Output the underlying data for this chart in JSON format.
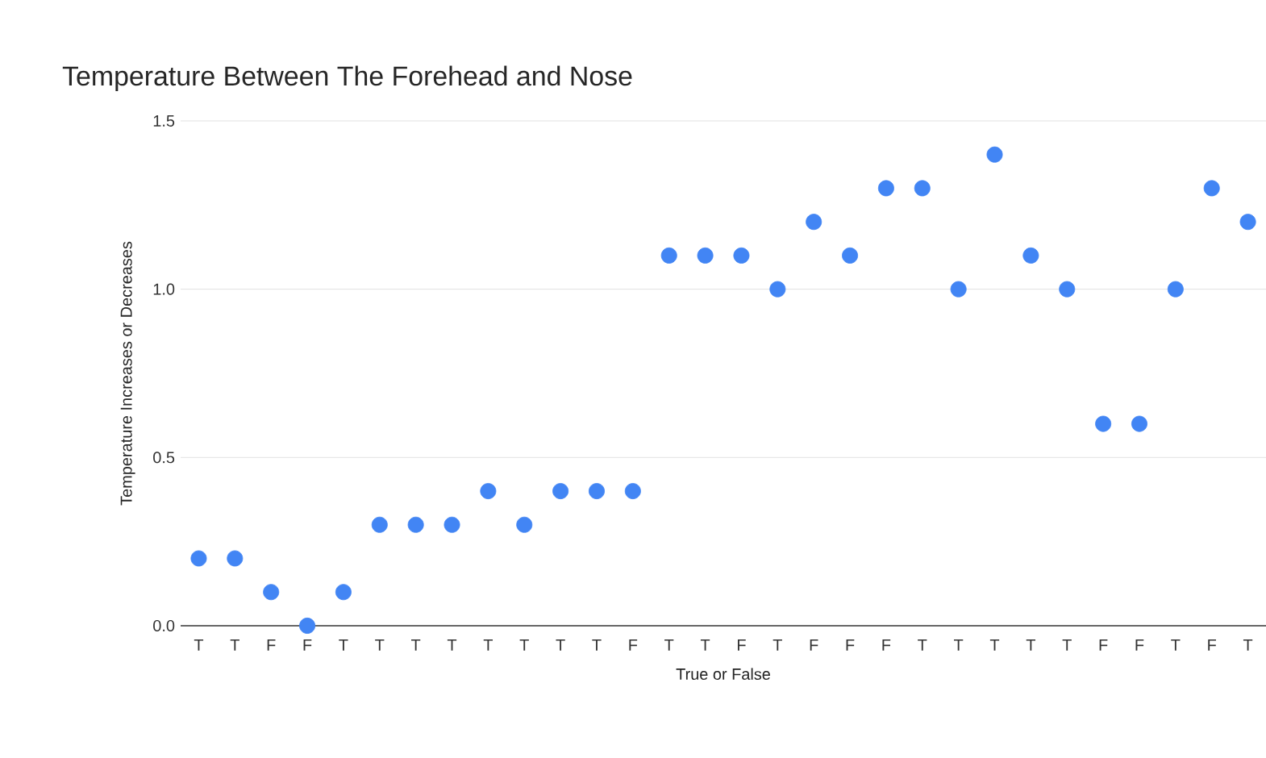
{
  "chart_data": {
    "type": "scatter",
    "title": "Temperature Between The Forehead and Nose",
    "xlabel": "True or False",
    "ylabel": "Temperature Increases or Decreases",
    "categories": [
      "T",
      "T",
      "F",
      "F",
      "T",
      "T",
      "T",
      "T",
      "T",
      "T",
      "T",
      "T",
      "F",
      "T",
      "T",
      "F",
      "T",
      "F",
      "F",
      "F",
      "T",
      "T",
      "T",
      "T",
      "T",
      "F",
      "F",
      "T",
      "F",
      "T"
    ],
    "values": [
      0.2,
      0.2,
      0.1,
      0,
      0.1,
      0.3,
      0.3,
      0.3,
      0.4,
      0.3,
      0.4,
      0.4,
      0.4,
      1.1,
      1.1,
      1.1,
      1.0,
      1.2,
      1.1,
      1.3,
      1.3,
      1.0,
      1.4,
      1.1,
      1.0,
      0.6,
      0.6,
      1.0,
      1.3,
      1.2
    ],
    "color": "#4285f4",
    "ylim": [
      0,
      1.5
    ],
    "yticks": [
      {
        "value": 0,
        "label": "0.0"
      },
      {
        "value": 0.5,
        "label": "0.5"
      },
      {
        "value": 1.0,
        "label": "1.0"
      },
      {
        "value": 1.5,
        "label": "1.5"
      }
    ],
    "grid": "y",
    "legend": false
  }
}
